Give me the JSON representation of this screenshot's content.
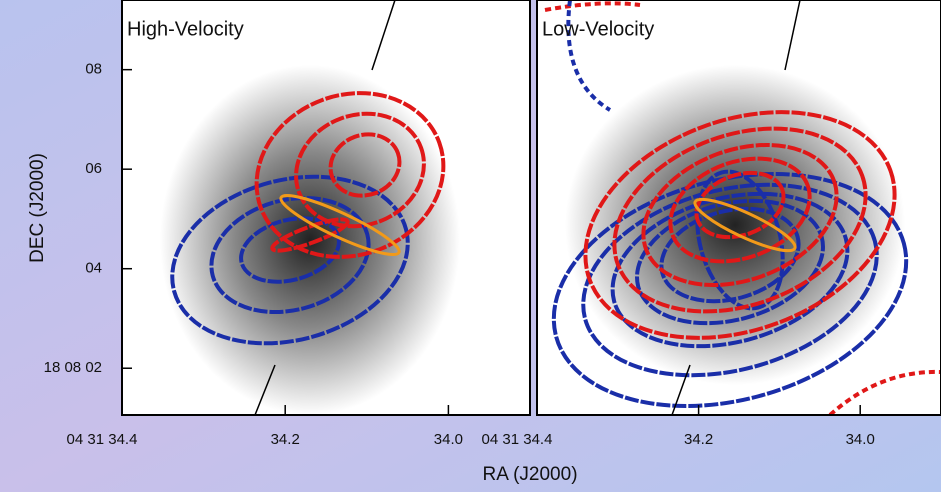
{
  "chart_data": [
    {
      "type": "contour",
      "title": "High-Velocity",
      "xlabel": "RA (J2000)",
      "ylabel": "DEC (J2000)",
      "xlim": [
        34.4,
        33.9
      ],
      "ylim": [
        1.06,
        9.4
      ],
      "xticks": [
        {
          "value": 34.4,
          "label": "04 31 34.4"
        },
        {
          "value": 34.2,
          "label": "34.2"
        },
        {
          "value": 34.0,
          "label": "34.0"
        }
      ],
      "yticks": [
        {
          "value": 2,
          "label": "18 08 02"
        },
        {
          "value": 4,
          "label": "04"
        },
        {
          "value": 6,
          "label": "06"
        },
        {
          "value": 8,
          "label": "08"
        }
      ]
    },
    {
      "type": "contour",
      "title": "Low-Velocity",
      "xlim": [
        34.4,
        33.9
      ],
      "ylim": [
        1.06,
        9.4
      ],
      "xticks": [
        {
          "value": 34.4,
          "label": "04 31 34.4"
        },
        {
          "value": 34.2,
          "label": "34.2"
        },
        {
          "value": 34.0,
          "label": "34.0"
        }
      ]
    }
  ]
}
